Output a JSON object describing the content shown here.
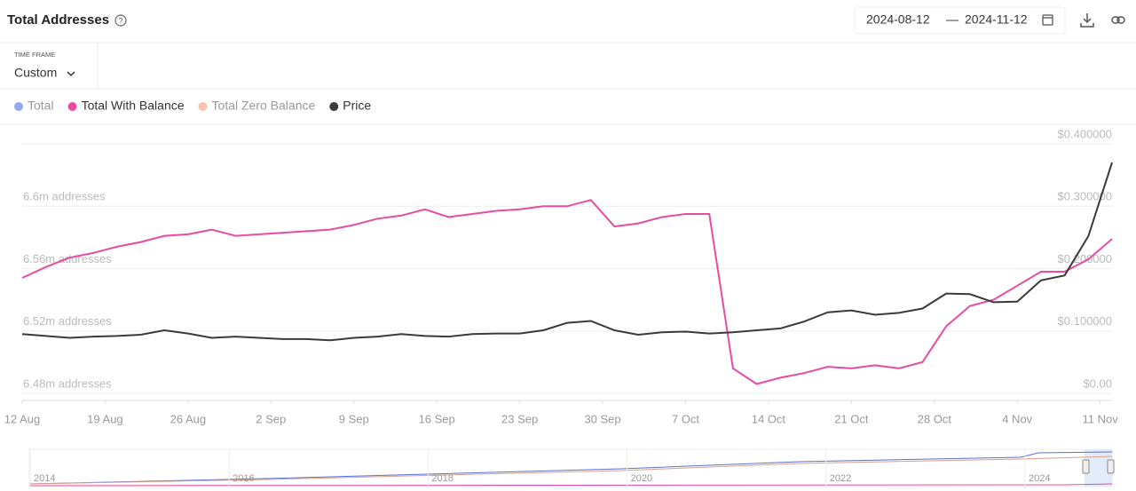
{
  "header": {
    "title": "Total Addresses",
    "date_start": "2024-08-12",
    "date_separator": "—",
    "date_end": "2024-11-12",
    "time_frame_label": "TIME FRAME",
    "time_frame_value": "Custom"
  },
  "chart_data": {
    "type": "line",
    "x": [
      "2024-08-12",
      "2024-08-14",
      "2024-08-16",
      "2024-08-18",
      "2024-08-20",
      "2024-08-22",
      "2024-08-24",
      "2024-08-26",
      "2024-08-28",
      "2024-08-30",
      "2024-09-01",
      "2024-09-03",
      "2024-09-05",
      "2024-09-07",
      "2024-09-09",
      "2024-09-11",
      "2024-09-13",
      "2024-09-15",
      "2024-09-17",
      "2024-09-19",
      "2024-09-21",
      "2024-09-23",
      "2024-09-25",
      "2024-09-27",
      "2024-09-29",
      "2024-10-01",
      "2024-10-03",
      "2024-10-05",
      "2024-10-07",
      "2024-10-09",
      "2024-10-11",
      "2024-10-13",
      "2024-10-15",
      "2024-10-17",
      "2024-10-19",
      "2024-10-21",
      "2024-10-23",
      "2024-10-25",
      "2024-10-27",
      "2024-10-29",
      "2024-10-31",
      "2024-11-02",
      "2024-11-04",
      "2024-11-06",
      "2024-11-08",
      "2024-11-10",
      "2024-11-12"
    ],
    "series": [
      {
        "name": "Total",
        "color": "#7b93e8",
        "visible": false
      },
      {
        "name": "Total With Balance",
        "color": "#e94ba3",
        "visible": true,
        "axis": "y",
        "values": [
          6554000,
          6561000,
          6567000,
          6570000,
          6574000,
          6577000,
          6581000,
          6582000,
          6585000,
          6581000,
          6582000,
          6583000,
          6584000,
          6585000,
          6588000,
          6592000,
          6594000,
          6598000,
          6593000,
          6595000,
          6597000,
          6598000,
          6600000,
          6600000,
          6604000,
          6587000,
          6589000,
          6593000,
          6595000,
          6595000,
          6496000,
          6486000,
          6490000,
          6493000,
          6497000,
          6496000,
          6498000,
          6496000,
          6500000,
          6523000,
          6536000,
          6540000,
          6549000,
          6558000,
          6558000,
          6566000,
          6579000
        ]
      },
      {
        "name": "Total Zero Balance",
        "color": "#f5b79a",
        "visible": false
      },
      {
        "name": "Price",
        "color": "#3a3a3a",
        "visible": true,
        "axis": "y2",
        "values": [
          0.095,
          0.092,
          0.089,
          0.091,
          0.092,
          0.094,
          0.101,
          0.096,
          0.089,
          0.091,
          0.089,
          0.087,
          0.087,
          0.085,
          0.089,
          0.091,
          0.095,
          0.092,
          0.091,
          0.095,
          0.096,
          0.096,
          0.101,
          0.113,
          0.116,
          0.101,
          0.094,
          0.098,
          0.099,
          0.096,
          0.098,
          0.101,
          0.104,
          0.115,
          0.13,
          0.133,
          0.126,
          0.129,
          0.136,
          0.16,
          0.159,
          0.146,
          0.147,
          0.181,
          0.189,
          0.252,
          0.37
        ]
      }
    ],
    "xlim": [
      "2024-08-12",
      "2024-11-12"
    ],
    "xticks": [
      {
        "value": "2024-08-12",
        "label": "12 Aug"
      },
      {
        "value": "2024-08-19",
        "label": "19 Aug"
      },
      {
        "value": "2024-08-26",
        "label": "26 Aug"
      },
      {
        "value": "2024-09-02",
        "label": "2 Sep"
      },
      {
        "value": "2024-09-09",
        "label": "9 Sep"
      },
      {
        "value": "2024-09-16",
        "label": "16 Sep"
      },
      {
        "value": "2024-09-23",
        "label": "23 Sep"
      },
      {
        "value": "2024-09-30",
        "label": "30 Sep"
      },
      {
        "value": "2024-10-07",
        "label": "7 Oct"
      },
      {
        "value": "2024-10-14",
        "label": "14 Oct"
      },
      {
        "value": "2024-10-21",
        "label": "21 Oct"
      },
      {
        "value": "2024-10-28",
        "label": "28 Oct"
      },
      {
        "value": "2024-11-04",
        "label": "4 Nov"
      },
      {
        "value": "2024-11-11",
        "label": "11 Nov"
      }
    ],
    "ylim": [
      6480000,
      6640000
    ],
    "yticks": [
      {
        "value": 6480000,
        "label": "6.48m addresses"
      },
      {
        "value": 6520000,
        "label": "6.52m addresses"
      },
      {
        "value": 6560000,
        "label": "6.56m addresses"
      },
      {
        "value": 6600000,
        "label": "6.6m addresses"
      }
    ],
    "y2lim": [
      0,
      0.4
    ],
    "y2ticks": [
      {
        "value": 0,
        "label": "$0.00"
      },
      {
        "value": 0.1,
        "label": "$0.100000"
      },
      {
        "value": 0.2,
        "label": "$0.200000"
      },
      {
        "value": 0.3,
        "label": "$0.300000"
      },
      {
        "value": 0.4,
        "label": "$0.400000"
      }
    ],
    "grid": true
  },
  "navigator": {
    "labels": [
      "2014",
      "2016",
      "2018",
      "2020",
      "2022",
      "2024"
    ]
  }
}
